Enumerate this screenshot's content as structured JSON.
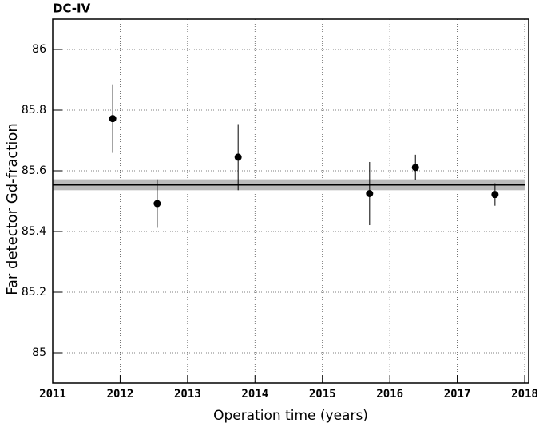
{
  "chart_data": {
    "type": "scatter",
    "title": "DC-IV",
    "x_label": "Operation time (years)",
    "y_label": "Far detector Gd-fraction",
    "xlim": [
      2011,
      2018
    ],
    "xticks": [
      2011,
      2012,
      2013,
      2014,
      2015,
      2016,
      2017,
      2018
    ],
    "ylim": [
      84.9,
      86.1
    ],
    "yticks": [
      85,
      85.2,
      85.4,
      85.6,
      85.8,
      86
    ],
    "grid": true,
    "title_color": "#e8141c",
    "series": [
      {
        "color": "#000000",
        "x": [
          2011.89,
          2012.55,
          2013.75,
          2015.7,
          2016.38,
          2017.56
        ],
        "values": [
          85.772,
          85.492,
          85.645,
          85.525,
          85.611,
          85.522
        ],
        "errors": [
          0.113,
          0.08,
          0.109,
          0.104,
          0.042,
          0.037
        ]
      }
    ],
    "fit": {
      "value": 85.554,
      "error": 0.018,
      "color": "#000000",
      "band_color": "#bbbbbb"
    }
  }
}
